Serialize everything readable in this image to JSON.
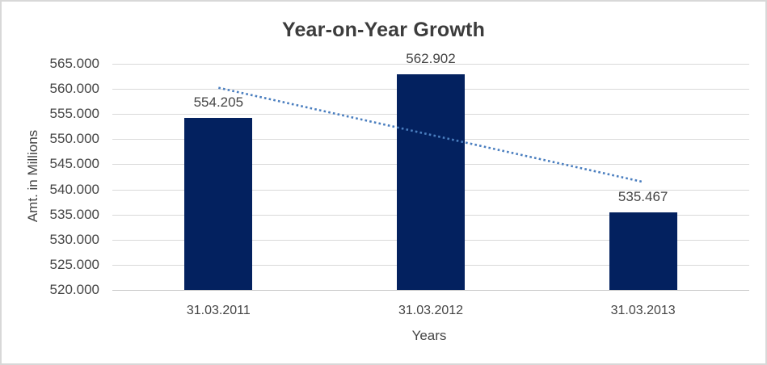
{
  "window": {
    "background": "#FFFFFF",
    "border_color": "#D8D8D8"
  },
  "chart_data": {
    "type": "bar",
    "title": "Year-on-Year Growth",
    "xlabel": "Years",
    "ylabel": "Amt. in Millions",
    "categories": [
      "31.03.2011",
      "31.03.2012",
      "31.03.2013"
    ],
    "values": [
      554205,
      562902,
      535467
    ],
    "value_labels": [
      "554.205",
      "562.902",
      "535.467"
    ],
    "ylim": [
      520000,
      565000
    ],
    "ytick_step": 5000,
    "ytick_labels": [
      "565.000",
      "560.000",
      "555.000",
      "550.000",
      "545.000",
      "540.000",
      "535.000",
      "530.000",
      "525.000",
      "520.000"
    ],
    "grid": true,
    "legend_position": "none",
    "bar_color": "#03215F",
    "gridline_color": "#D9D9D9",
    "axis_line_color": "#C6C6C6",
    "text_color": "#454545",
    "title_color": "#3C3C3C",
    "trendline": {
      "type": "linear",
      "style": "dotted",
      "color": "#4A7EBF",
      "start_value": 560227,
      "end_value": 541489
    }
  }
}
